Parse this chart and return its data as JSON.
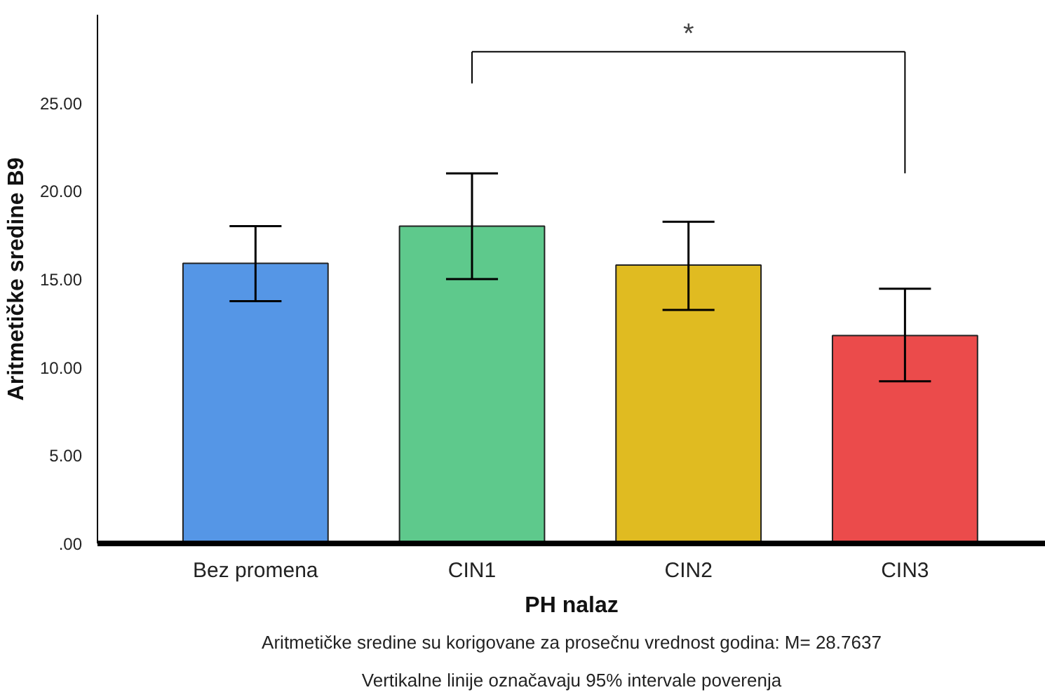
{
  "chart_data": {
    "type": "bar",
    "xlabel": "PH nalaz",
    "ylabel": "Aritmetičke sredine B9",
    "categories": [
      "Bez promena",
      "CIN1",
      "CIN2",
      "CIN3"
    ],
    "values": [
      15.9,
      18.0,
      15.8,
      11.8
    ],
    "colors": [
      "#5596e6",
      "#5ec98c",
      "#e0bb21",
      "#eb4b4b"
    ],
    "errors": [
      [
        13.75,
        18.0
      ],
      [
        15.0,
        21.0
      ],
      [
        13.25,
        18.25
      ],
      [
        9.2,
        14.45
      ]
    ],
    "ylim": [
      0,
      30
    ],
    "yticks": [
      {
        "value": 0,
        "label": ".00"
      },
      {
        "value": 5,
        "label": "5.00"
      },
      {
        "value": 10,
        "label": "10.00"
      },
      {
        "value": 15,
        "label": "15.00"
      },
      {
        "value": 20,
        "label": "20.00"
      },
      {
        "value": 25,
        "label": "25.00"
      }
    ],
    "grid": false,
    "annotations": [
      "*",
      "Aritmetičke sredine su korigovane za prosečnu vrednost godina: M= 28.7637",
      "Vertikalne linije označavaju 95% intervale poverenja"
    ]
  }
}
